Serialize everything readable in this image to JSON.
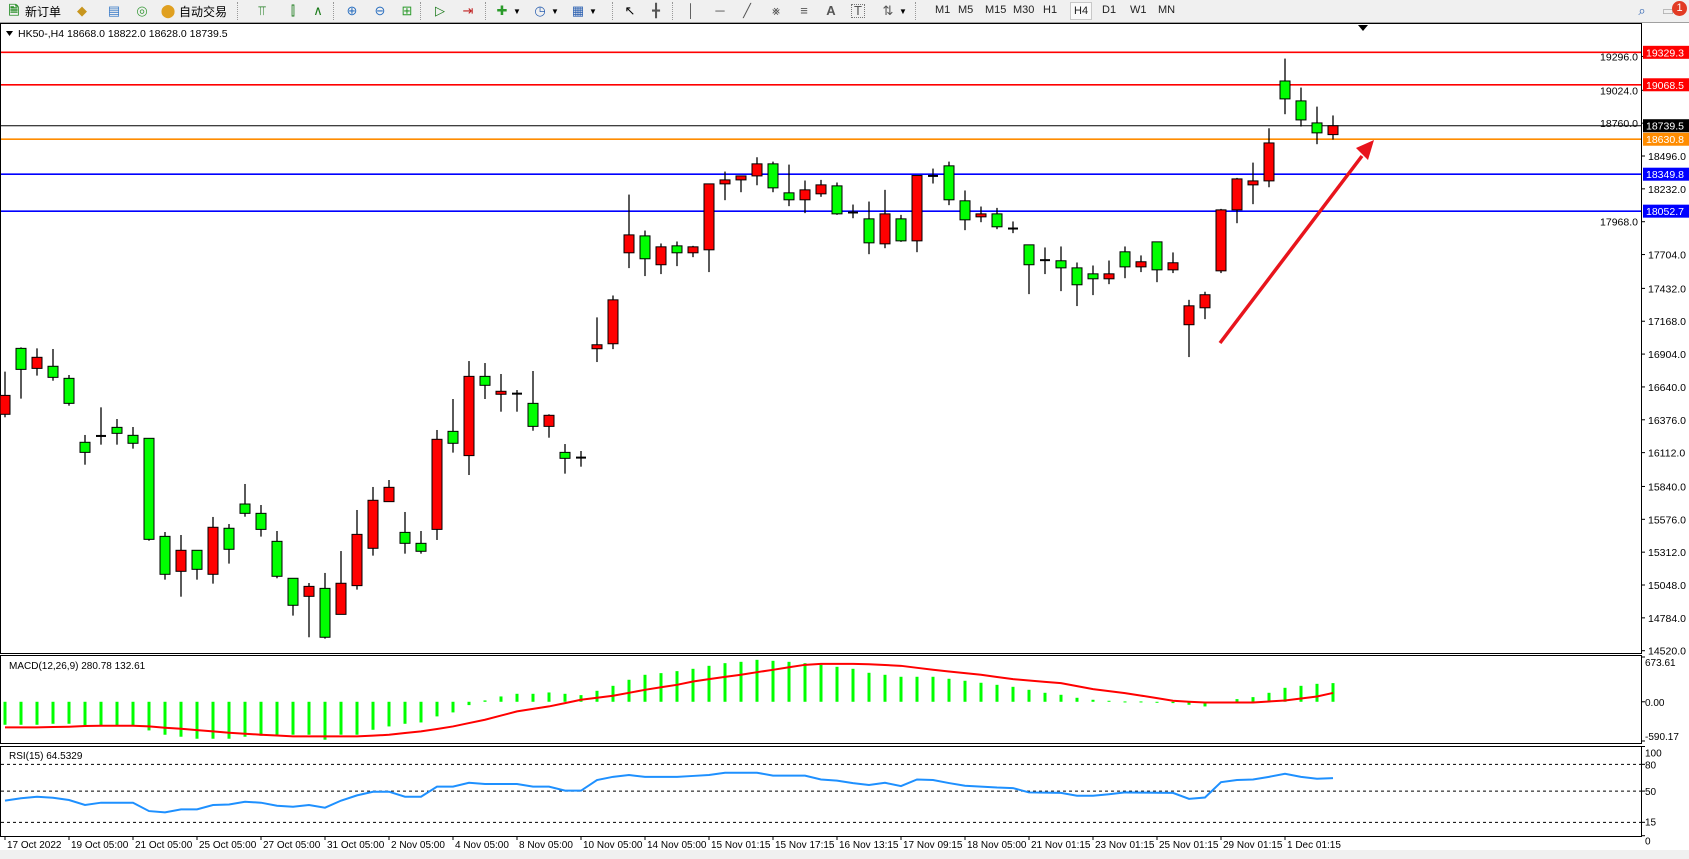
{
  "toolbar": {
    "new_order_label": "新订单",
    "autotrade_label": "自动交易",
    "icons": [
      "new-order-icon",
      "chart-folder-icon",
      "market-watch-icon",
      "signal-icon",
      "autotrade-icon",
      "bar-chart-icon",
      "candlestick-icon",
      "line-chart-icon",
      "zoom-in-icon",
      "zoom-out-icon",
      "tile-windows-icon",
      "auto-scroll-icon",
      "chart-shift-icon",
      "indicators-icon",
      "periods-icon",
      "templates-icon",
      "cursor-icon",
      "crosshair-icon",
      "vertical-line-icon",
      "horizontal-line-icon",
      "trendline-icon",
      "fibonacci-expansion-icon",
      "fibonacci-retracement-icon",
      "text-icon",
      "text-label-icon",
      "arrows-icon",
      "search-icon",
      "chat-icon"
    ],
    "timeframes": [
      "M1",
      "M5",
      "M15",
      "M30",
      "H1",
      "H4",
      "D1",
      "W1",
      "MN"
    ],
    "active_timeframe": "H4",
    "notification_count": "1"
  },
  "chart_data": [
    {
      "type": "candlestick",
      "symbol_header": "HK50-,H4  18668.0 18822.0 18628.0 18739.5",
      "ohlc_order": [
        "open",
        "high",
        "low",
        "close"
      ],
      "up_color": "#ff0000",
      "down_color": "#00ff00",
      "ylim": [
        14509,
        19565
      ],
      "y_ticks": [
        "19296.0",
        "19024.0",
        "18760.0",
        "18496.0",
        "18232.0",
        "17968.0",
        "17704.0",
        "17432.0",
        "17168.0",
        "16904.0",
        "16640.0",
        "16376.0",
        "16112.0",
        "15840.0",
        "15576.0",
        "15312.0",
        "15048.0",
        "14784.0",
        "14520.0"
      ],
      "y_tick_values": [
        19296,
        19024,
        18760,
        18496,
        18232,
        17968,
        17704,
        17432,
        17168,
        16904,
        16640,
        16376,
        16112,
        15840,
        15576,
        15312,
        15048,
        14784,
        14520
      ],
      "x_labels": [
        "17 Oct 2022",
        "19 Oct 05:00",
        "21 Oct 05:00",
        "25 Oct 05:00",
        "27 Oct 05:00",
        "31 Oct 05:00",
        "2 Nov 05:00",
        "4 Nov 05:00",
        "8 Nov 05:00",
        "10 Nov 05:00",
        "14 Nov 05:00",
        "15 Nov 01:15",
        "15 Nov 17:15",
        "16 Nov 13:15",
        "17 Nov 09:15",
        "18 Nov 05:00",
        "21 Nov 01:15",
        "23 Nov 01:15",
        "25 Nov 01:15",
        "29 Nov 01:15",
        "1 Dec 01:15"
      ],
      "x_label_every_n_bars": 4,
      "candles": [
        [
          16420,
          16763,
          16396,
          16572
        ],
        [
          16950,
          16958,
          16546,
          16781
        ],
        [
          16789,
          16950,
          16731,
          16878
        ],
        [
          16806,
          16945,
          16690,
          16717
        ],
        [
          16709,
          16736,
          16489,
          16508
        ],
        [
          16195,
          16254,
          16015,
          16114
        ],
        [
          16246,
          16476,
          16176,
          16246
        ],
        [
          16315,
          16382,
          16176,
          16267
        ],
        [
          16251,
          16318,
          16144,
          16187
        ],
        [
          16227,
          16227,
          15404,
          15415
        ],
        [
          15439,
          15474,
          15091,
          15134
        ],
        [
          15158,
          15450,
          14954,
          15327
        ],
        [
          15327,
          15327,
          15091,
          15174
        ],
        [
          15134,
          15595,
          15059,
          15512
        ],
        [
          15504,
          15538,
          15220,
          15335
        ],
        [
          15699,
          15860,
          15597,
          15624
        ],
        [
          15624,
          15691,
          15437,
          15495
        ],
        [
          15399,
          15482,
          15102,
          15118
        ],
        [
          15102,
          15102,
          14802,
          14885
        ],
        [
          14957,
          15064,
          14628,
          15037
        ],
        [
          15021,
          15145,
          14617,
          14628
        ],
        [
          14812,
          15321,
          14812,
          15062
        ],
        [
          15043,
          15651,
          15011,
          15455
        ],
        [
          15343,
          15836,
          15284,
          15729
        ],
        [
          15718,
          15892,
          15718,
          15833
        ],
        [
          15471,
          15635,
          15300,
          15383
        ],
        [
          15383,
          15482,
          15300,
          15319
        ],
        [
          15495,
          16294,
          15410,
          16219
        ],
        [
          16283,
          16543,
          16112,
          16187
        ],
        [
          16088,
          16848,
          15932,
          16725
        ],
        [
          16725,
          16832,
          16543,
          16653
        ],
        [
          16581,
          16744,
          16441,
          16605
        ],
        [
          16586,
          16615,
          16441,
          16586
        ],
        [
          16508,
          16768,
          16288,
          16323
        ],
        [
          16323,
          16420,
          16232,
          16412
        ],
        [
          16114,
          16181,
          15943,
          16066
        ],
        [
          16072,
          16125,
          15999,
          16072
        ],
        [
          16947,
          17199,
          16840,
          16979
        ],
        [
          16987,
          17375,
          16944,
          17340
        ],
        [
          17718,
          18186,
          17595,
          17862
        ],
        [
          17854,
          17897,
          17531,
          17670
        ],
        [
          17622,
          17793,
          17547,
          17766
        ],
        [
          17774,
          17809,
          17611,
          17718
        ],
        [
          17718,
          17774,
          17683,
          17766
        ],
        [
          17742,
          18272,
          17563,
          18272
        ],
        [
          18272,
          18371,
          18141,
          18304
        ],
        [
          18304,
          18336,
          18205,
          18336
        ],
        [
          18336,
          18486,
          18261,
          18433
        ],
        [
          18433,
          18451,
          18205,
          18240
        ],
        [
          18200,
          18427,
          18093,
          18144
        ],
        [
          18144,
          18299,
          18037,
          18224
        ],
        [
          18192,
          18304,
          18168,
          18264
        ],
        [
          18256,
          18283,
          18023,
          18031
        ],
        [
          18042,
          18106,
          17996,
          18042
        ],
        [
          17991,
          18130,
          17707,
          17798
        ],
        [
          17790,
          18224,
          17755,
          18031
        ],
        [
          17991,
          18023,
          17806,
          17814
        ],
        [
          17814,
          18339,
          17723,
          18339
        ],
        [
          18336,
          18395,
          18275,
          18336
        ],
        [
          18417,
          18451,
          18101,
          18144
        ],
        [
          18136,
          18219,
          17900,
          17983
        ],
        [
          18007,
          18090,
          17964,
          18031
        ],
        [
          18031,
          18079,
          17908,
          17927
        ],
        [
          17913,
          17970,
          17876,
          17913
        ],
        [
          17782,
          17782,
          17386,
          17622
        ],
        [
          17659,
          17761,
          17547,
          17659
        ],
        [
          17654,
          17769,
          17410,
          17597
        ],
        [
          17597,
          17640,
          17290,
          17461
        ],
        [
          17549,
          17616,
          17378,
          17509
        ],
        [
          17509,
          17656,
          17466,
          17549
        ],
        [
          17726,
          17769,
          17514,
          17605
        ],
        [
          17605,
          17697,
          17563,
          17646
        ],
        [
          17806,
          17806,
          17482,
          17581
        ],
        [
          17581,
          17721,
          17555,
          17638
        ],
        [
          17140,
          17340,
          16880,
          17292
        ],
        [
          17276,
          17405,
          17185,
          17381
        ],
        [
          17573,
          18071,
          17555,
          18063
        ],
        [
          18063,
          18320,
          17956,
          18312
        ],
        [
          18264,
          18443,
          18109,
          18296
        ],
        [
          18296,
          18719,
          18245,
          18601
        ],
        [
          19099,
          19279,
          18832,
          18955
        ],
        [
          18939,
          19046,
          18733,
          18786
        ],
        [
          18762,
          18893,
          18591,
          18682
        ],
        [
          18668,
          18822,
          18628,
          18739.5
        ]
      ],
      "horizontal_lines": [
        {
          "price": 19329.3,
          "label": "19329.3",
          "color": "#ff0000"
        },
        {
          "price": 19068.5,
          "label": "19068.5",
          "color": "#ff0000"
        },
        {
          "price": 18739.5,
          "label": "18739.5",
          "color": "#000000"
        },
        {
          "price": 18630.8,
          "label": "18630.8",
          "color": "#ff8c00"
        },
        {
          "price": 18349.8,
          "label": "18349.8",
          "color": "#0000ff"
        },
        {
          "price": 18052.7,
          "label": "18052.7",
          "color": "#0000ff"
        }
      ],
      "annotation": {
        "type": "arrow",
        "color": "#e8141c"
      }
    },
    {
      "type": "bar+line",
      "title": "MACD(12,26,9) 280.78 132.61",
      "ylim": [
        -590.17,
        673.61
      ],
      "y_ticks": [
        "673.61",
        "0.00",
        "-590.17"
      ],
      "histogram_color": "#00ff00",
      "signal_color": "#ff0000",
      "macd": [
        -346,
        -346,
        -346,
        -331,
        -331,
        -361,
        -361,
        -361,
        -361,
        -431,
        -496,
        -526,
        -556,
        -556,
        -556,
        -526,
        -511,
        -496,
        -496,
        -496,
        -571,
        -496,
        -496,
        -421,
        -371,
        -331,
        -311,
        -220,
        -160,
        -50,
        20,
        80,
        120,
        120,
        140,
        120,
        100,
        165,
        240,
        331,
        406,
        431,
        461,
        496,
        541,
        581,
        601,
        631,
        616,
        601,
        581,
        556,
        526,
        496,
        436,
        406,
        376,
        376,
        376,
        346,
        316,
        286,
        255,
        225,
        180,
        135,
        105,
        60,
        30,
        15,
        5,
        5,
        -5,
        -20,
        -45,
        -70,
        0,
        40,
        70,
        135,
        210,
        240,
        270,
        280.78
      ],
      "signal": [
        -386,
        -386,
        -386,
        -380,
        -375,
        -365,
        -361,
        -361,
        -361,
        -370,
        -390,
        -406,
        -426,
        -446,
        -466,
        -481,
        -496,
        -508,
        -521,
        -521,
        -521,
        -521,
        -521,
        -510,
        -496,
        -470,
        -446,
        -410,
        -371,
        -320,
        -270,
        -207,
        -145,
        -107,
        -70,
        -20,
        30,
        60,
        90,
        135,
        180,
        218,
        255,
        305,
        340,
        375,
        406,
        445,
        481,
        520,
        556,
        571,
        571,
        571,
        565,
        553,
        541,
        511,
        481,
        456,
        431,
        406,
        373,
        340,
        320,
        300,
        280,
        235,
        190,
        160,
        130,
        93,
        55,
        15,
        0,
        -10,
        -10,
        -10,
        -10,
        5,
        20,
        50,
        80,
        132.61
      ]
    },
    {
      "type": "line",
      "title": "RSI(15) 64.5329",
      "ylim": [
        0,
        100
      ],
      "y_ticks": [
        "100",
        "80",
        "50",
        "15",
        "0"
      ],
      "levels": [
        80,
        50,
        15
      ],
      "line_color": "#1e90ff",
      "values": [
        39.3,
        42,
        43.7,
        42.6,
        40,
        34.4,
        37,
        37,
        37,
        27.6,
        26.1,
        29.5,
        29.5,
        34.4,
        35,
        38,
        37,
        33.6,
        32.5,
        34.4,
        31.4,
        39.3,
        45.2,
        49.3,
        49.3,
        43.7,
        43.7,
        55,
        55,
        59.3,
        58,
        58,
        58,
        55,
        55,
        50.5,
        50.5,
        62.4,
        66,
        68,
        66,
        66,
        66,
        67,
        68,
        70.6,
        70.6,
        70.6,
        67.3,
        67.3,
        67.3,
        63,
        61.7,
        59,
        56.8,
        59.3,
        55.6,
        63,
        62.4,
        59,
        56,
        55,
        54,
        53.4,
        48.5,
        48.3,
        48,
        44.8,
        44.8,
        46.5,
        48.5,
        48.3,
        48.2,
        48,
        41.3,
        42.8,
        60,
        62.4,
        63,
        66,
        69.4,
        66,
        63.8,
        64.5329
      ]
    }
  ]
}
